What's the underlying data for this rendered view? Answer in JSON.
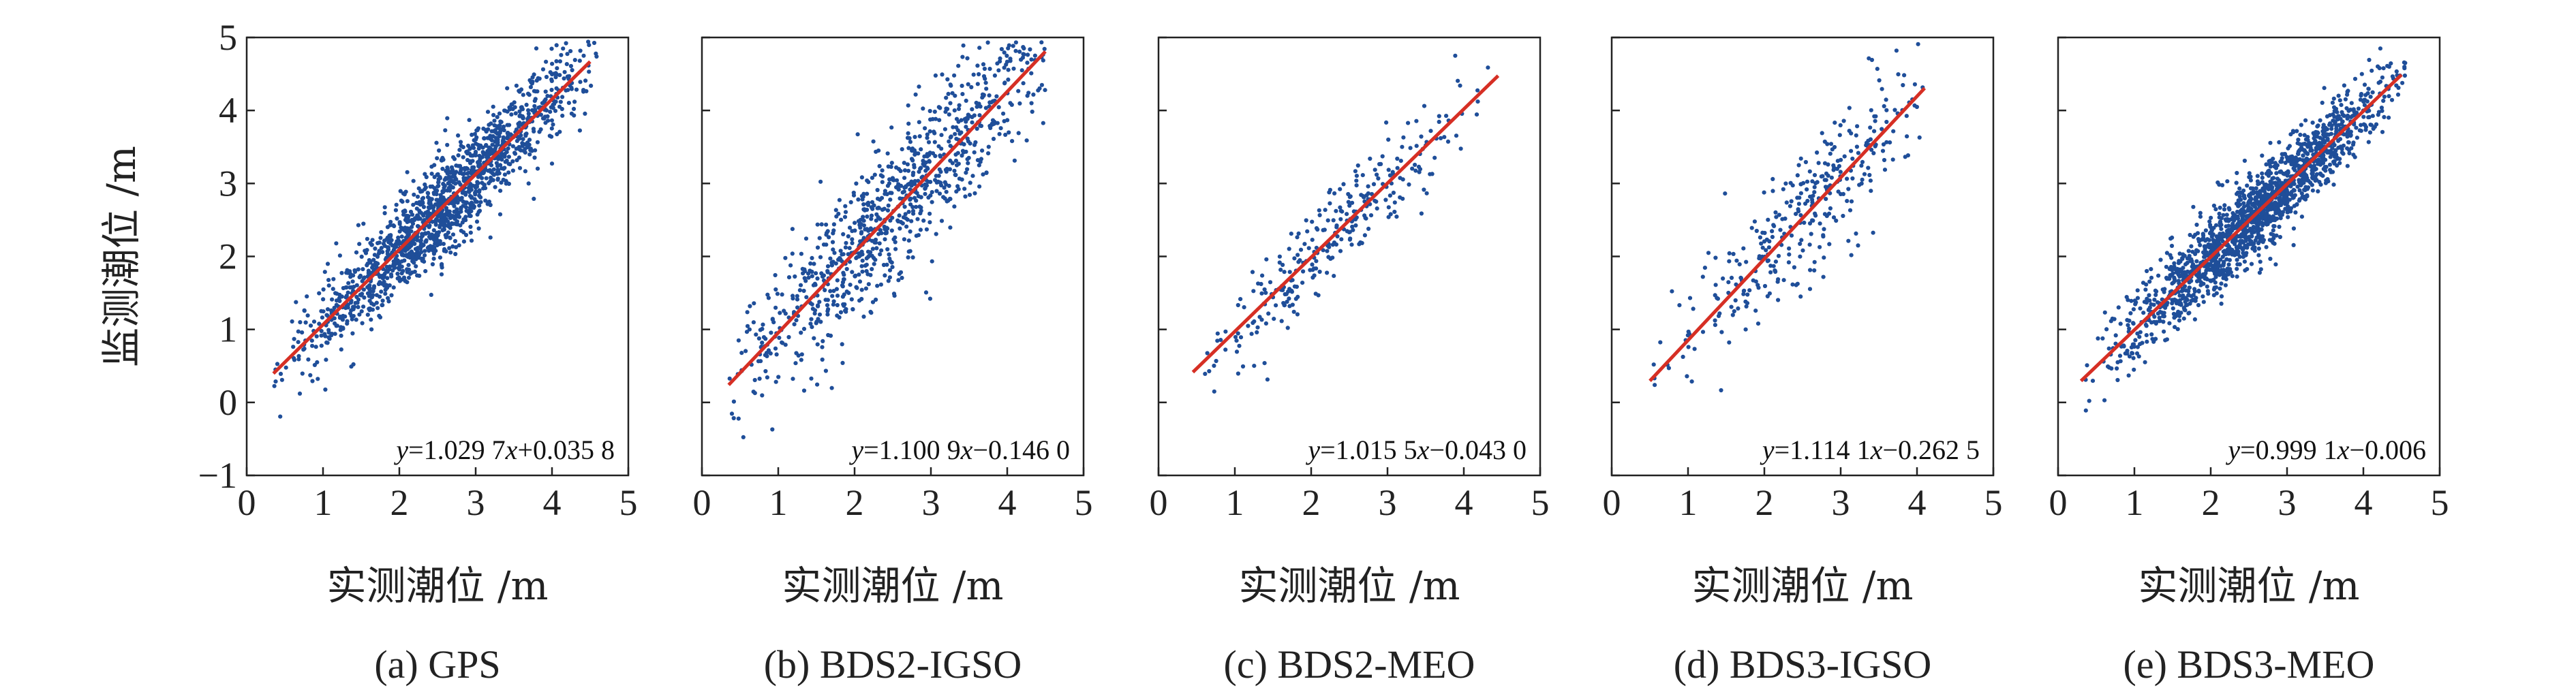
{
  "y_axis_title": "监测潮位 /m",
  "colors": {
    "points": "#1f4e99",
    "fit_line": "#d62f24",
    "axes": "#222222"
  },
  "chart_data": [
    {
      "type": "scatter",
      "title": "(a) GPS",
      "xlabel": "实测潮位 /m",
      "ylabel": "监测潮位 /m",
      "xlim": [
        0,
        5
      ],
      "ylim": [
        -1,
        5
      ],
      "xticks": [
        0,
        1,
        2,
        3,
        4,
        5
      ],
      "yticks": [
        -1,
        0,
        1,
        2,
        3,
        4,
        5
      ],
      "fit": {
        "slope": 1.0297,
        "intercept": 0.0358,
        "x_range": [
          0.35,
          4.5
        ]
      },
      "equation": "y=1.029 7x+0.035 8",
      "point_count": 1500,
      "x_range": [
        0.35,
        4.6
      ],
      "x_center": 2.6,
      "x_spread": 0.9,
      "noise": 0.32
    },
    {
      "type": "scatter",
      "title": "(b) BDS2-IGSO",
      "xlabel": "实测潮位 /m",
      "ylabel": "监测潮位 /m",
      "xlim": [
        0,
        5
      ],
      "ylim": [
        -1,
        5
      ],
      "xticks": [
        0,
        1,
        2,
        3,
        4,
        5
      ],
      "yticks": [
        -1,
        0,
        1,
        2,
        3,
        4,
        5
      ],
      "fit": {
        "slope": 1.1009,
        "intercept": -0.146,
        "x_range": [
          0.35,
          4.5
        ]
      },
      "equation": "y=1.100 9x−0.146 0",
      "point_count": 900,
      "x_range": [
        0.35,
        4.5
      ],
      "x_center": 2.5,
      "x_spread": 1.0,
      "noise": 0.5
    },
    {
      "type": "scatter",
      "title": "(c) BDS2-MEO",
      "xlabel": "实测潮位 /m",
      "ylabel": "监测潮位 /m",
      "xlim": [
        0,
        5
      ],
      "ylim": [
        -1,
        5
      ],
      "xticks": [
        0,
        1,
        2,
        3,
        4,
        5
      ],
      "yticks": [
        -1,
        0,
        1,
        2,
        3,
        4,
        5
      ],
      "fit": {
        "slope": 1.0155,
        "intercept": -0.043,
        "x_range": [
          0.45,
          4.45
        ]
      },
      "equation": "y=1.015 5x−0.043 0",
      "point_count": 300,
      "x_range": [
        0.45,
        4.4
      ],
      "x_center": 2.3,
      "x_spread": 0.85,
      "noise": 0.33
    },
    {
      "type": "scatter",
      "title": "(d) BDS3-IGSO",
      "xlabel": "实测潮位 /m",
      "ylabel": "监测潮位 /m",
      "xlim": [
        0,
        5
      ],
      "ylim": [
        -1,
        5
      ],
      "xticks": [
        0,
        1,
        2,
        3,
        4,
        5
      ],
      "yticks": [
        -1,
        0,
        1,
        2,
        3,
        4,
        5
      ],
      "fit": {
        "slope": 1.1141,
        "intercept": -0.2625,
        "x_range": [
          0.5,
          4.1
        ]
      },
      "equation": "y=1.114 1x−0.262 5",
      "point_count": 340,
      "x_range": [
        0.5,
        4.1
      ],
      "x_center": 2.6,
      "x_spread": 0.85,
      "noise": 0.45
    },
    {
      "type": "scatter",
      "title": "(e) BDS3-MEO",
      "xlabel": "实测潮位 /m",
      "ylabel": "监测潮位 /m",
      "xlim": [
        0,
        5
      ],
      "ylim": [
        -1,
        5
      ],
      "xticks": [
        0,
        1,
        2,
        3,
        4,
        5
      ],
      "yticks": [
        -1,
        0,
        1,
        2,
        3,
        4,
        5
      ],
      "fit": {
        "slope": 0.9991,
        "intercept": -0.006,
        "x_range": [
          0.3,
          4.5
        ]
      },
      "equation": "y=0.999 1x−0.006",
      "point_count": 1700,
      "x_range": [
        0.3,
        4.55
      ],
      "x_center": 2.6,
      "x_spread": 0.85,
      "noise": 0.28
    }
  ]
}
